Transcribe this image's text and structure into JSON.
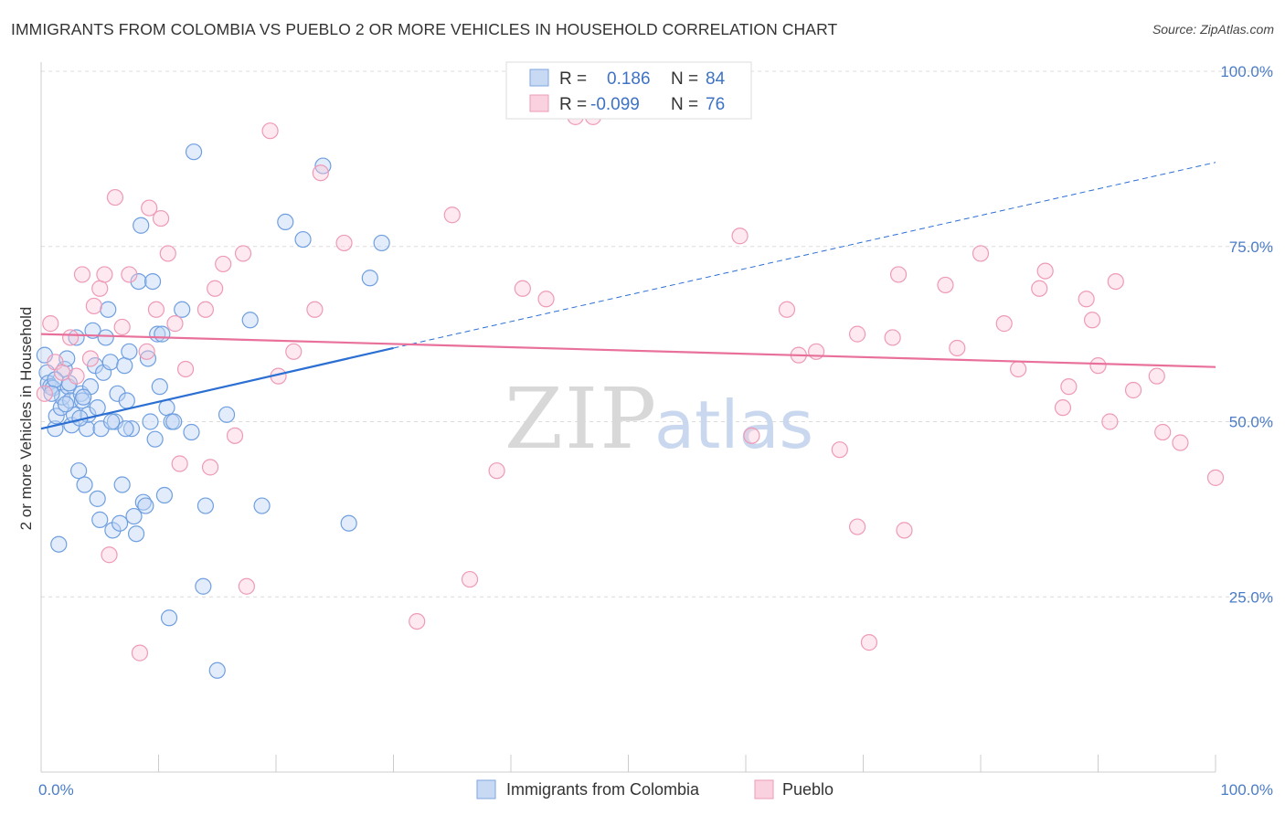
{
  "title": "IMMIGRANTS FROM COLOMBIA VS PUEBLO 2 OR MORE VEHICLES IN HOUSEHOLD CORRELATION CHART",
  "source": "Source: ZipAtlas.com",
  "watermark": {
    "zip": "ZIP",
    "atlas": "atlas"
  },
  "legend_top": {
    "r_label": "R =",
    "n_label": "N =",
    "series": [
      {
        "r": "0.186",
        "n": "84",
        "color": "#6f9fe0"
      },
      {
        "r": "-0.099",
        "n": "76",
        "color": "#ee8fb0"
      }
    ]
  },
  "chart_data": {
    "type": "scatter",
    "title": "IMMIGRANTS FROM COLOMBIA VS PUEBLO 2 OR MORE VEHICLES IN HOUSEHOLD CORRELATION CHART",
    "xlabel": "",
    "ylabel": "2 or more Vehicles in Household",
    "xlim": [
      0,
      100
    ],
    "ylim": [
      0,
      100
    ],
    "x_tick_labels": [
      "0.0%",
      "100.0%"
    ],
    "y_ticks": [
      25,
      50,
      75,
      100
    ],
    "y_tick_labels": [
      "25.0%",
      "50.0%",
      "75.0%",
      "100.0%"
    ],
    "grid": "horizontal dashed",
    "legend_position": "bottom",
    "series": [
      {
        "name": "Immigrants from Colombia",
        "color": "#6f9fe0",
        "line_color": "#2b6fd3",
        "trend": {
          "x0": 0,
          "y0": 49.0,
          "x1": 30,
          "y1": 60.5,
          "dash_to_x": 100,
          "dash_to_y": 87.0
        },
        "points": [
          [
            0.3,
            59.5
          ],
          [
            0.5,
            57
          ],
          [
            0.6,
            55.5
          ],
          [
            0.8,
            55
          ],
          [
            1.0,
            54.8
          ],
          [
            1.2,
            49
          ],
          [
            1.3,
            50.8
          ],
          [
            1.5,
            32.5
          ],
          [
            1.7,
            52
          ],
          [
            1.8,
            53.5
          ],
          [
            2.0,
            57.5
          ],
          [
            2.2,
            59
          ],
          [
            2.3,
            55
          ],
          [
            2.5,
            53
          ],
          [
            2.6,
            49.5
          ],
          [
            2.8,
            51
          ],
          [
            3.0,
            62
          ],
          [
            3.2,
            43
          ],
          [
            3.4,
            54
          ],
          [
            3.5,
            53
          ],
          [
            3.7,
            41
          ],
          [
            3.9,
            49
          ],
          [
            4.0,
            51
          ],
          [
            4.2,
            55
          ],
          [
            4.4,
            63
          ],
          [
            4.6,
            58
          ],
          [
            4.8,
            39
          ],
          [
            5.0,
            36
          ],
          [
            5.1,
            49
          ],
          [
            5.3,
            57
          ],
          [
            5.5,
            62
          ],
          [
            5.7,
            66
          ],
          [
            5.9,
            58.5
          ],
          [
            6.1,
            34.5
          ],
          [
            6.3,
            50
          ],
          [
            6.5,
            54
          ],
          [
            6.7,
            35.5
          ],
          [
            6.9,
            41
          ],
          [
            7.1,
            58
          ],
          [
            7.3,
            53
          ],
          [
            7.5,
            60
          ],
          [
            7.7,
            49
          ],
          [
            7.9,
            36.5
          ],
          [
            8.1,
            34
          ],
          [
            8.3,
            70
          ],
          [
            8.5,
            78
          ],
          [
            8.7,
            38.5
          ],
          [
            8.9,
            38
          ],
          [
            9.1,
            59
          ],
          [
            9.3,
            50
          ],
          [
            9.5,
            70
          ],
          [
            9.7,
            47.5
          ],
          [
            9.9,
            62.5
          ],
          [
            10.1,
            55
          ],
          [
            10.3,
            62.5
          ],
          [
            10.5,
            39.5
          ],
          [
            10.7,
            52
          ],
          [
            10.9,
            22
          ],
          [
            11.1,
            50
          ],
          [
            11.3,
            50
          ],
          [
            12.0,
            66
          ],
          [
            12.8,
            48.5
          ],
          [
            13.0,
            88.5
          ],
          [
            13.8,
            26.5
          ],
          [
            14.0,
            38
          ],
          [
            15.8,
            51
          ],
          [
            17.8,
            64.5
          ],
          [
            18.8,
            38
          ],
          [
            20.8,
            78.5
          ],
          [
            22.3,
            76
          ],
          [
            24.0,
            86.5
          ],
          [
            26.2,
            35.5
          ],
          [
            28.0,
            70.5
          ],
          [
            29.0,
            75.5
          ],
          [
            1.2,
            56
          ],
          [
            2.4,
            55.5
          ],
          [
            3.6,
            53.5
          ],
          [
            4.8,
            52
          ],
          [
            6.0,
            50
          ],
          [
            7.2,
            49
          ],
          [
            0.9,
            54
          ],
          [
            2.1,
            52.5
          ],
          [
            3.3,
            50.5
          ],
          [
            15.0,
            14.5
          ]
        ]
      },
      {
        "name": "Pueblo",
        "color": "#ee8fb0",
        "line_color": "#e8709a",
        "trend": {
          "x0": 0,
          "y0": 62.5,
          "x1": 100,
          "y1": 57.8
        },
        "points": [
          [
            0.3,
            54
          ],
          [
            0.8,
            64
          ],
          [
            1.2,
            58.5
          ],
          [
            1.8,
            57
          ],
          [
            2.5,
            62
          ],
          [
            3.0,
            56.5
          ],
          [
            3.5,
            71
          ],
          [
            4.2,
            59
          ],
          [
            4.5,
            66.5
          ],
          [
            5.0,
            69
          ],
          [
            5.4,
            71
          ],
          [
            5.8,
            31
          ],
          [
            6.3,
            82
          ],
          [
            6.9,
            63.5
          ],
          [
            7.5,
            71
          ],
          [
            8.4,
            17
          ],
          [
            9.0,
            60
          ],
          [
            9.2,
            80.5
          ],
          [
            9.8,
            66
          ],
          [
            10.2,
            79
          ],
          [
            10.8,
            74
          ],
          [
            11.4,
            64
          ],
          [
            11.8,
            44
          ],
          [
            12.3,
            57.5
          ],
          [
            14.0,
            66
          ],
          [
            14.4,
            43.5
          ],
          [
            14.8,
            69
          ],
          [
            15.5,
            72.5
          ],
          [
            16.5,
            48
          ],
          [
            17.2,
            74
          ],
          [
            17.5,
            26.5
          ],
          [
            19.5,
            91.5
          ],
          [
            20.2,
            56.5
          ],
          [
            21.5,
            60
          ],
          [
            23.3,
            66
          ],
          [
            23.8,
            85.5
          ],
          [
            25.8,
            75.5
          ],
          [
            32.0,
            21.5
          ],
          [
            35.0,
            79.5
          ],
          [
            36.5,
            27.5
          ],
          [
            38.8,
            43
          ],
          [
            41.0,
            69
          ],
          [
            43.0,
            67.5
          ],
          [
            45.5,
            93.5
          ],
          [
            47.0,
            93.5
          ],
          [
            59.5,
            76.5
          ],
          [
            60.5,
            48
          ],
          [
            63.5,
            66
          ],
          [
            64.5,
            59.5
          ],
          [
            66.0,
            60
          ],
          [
            68.0,
            46
          ],
          [
            69.5,
            62.5
          ],
          [
            69.5,
            35
          ],
          [
            70.5,
            18.5
          ],
          [
            72.5,
            62
          ],
          [
            73.0,
            71
          ],
          [
            73.5,
            34.5
          ],
          [
            77.0,
            69.5
          ],
          [
            78.0,
            60.5
          ],
          [
            80.0,
            74
          ],
          [
            82.0,
            64
          ],
          [
            83.2,
            57.5
          ],
          [
            85.0,
            69
          ],
          [
            85.5,
            71.5
          ],
          [
            87.0,
            52
          ],
          [
            87.5,
            55
          ],
          [
            89.0,
            67.5
          ],
          [
            89.5,
            64.5
          ],
          [
            90.0,
            58
          ],
          [
            91.0,
            50
          ],
          [
            91.5,
            70
          ],
          [
            93.0,
            54.5
          ],
          [
            95.0,
            56.5
          ],
          [
            95.5,
            48.5
          ],
          [
            97.0,
            47
          ],
          [
            100.0,
            42
          ]
        ]
      }
    ]
  }
}
